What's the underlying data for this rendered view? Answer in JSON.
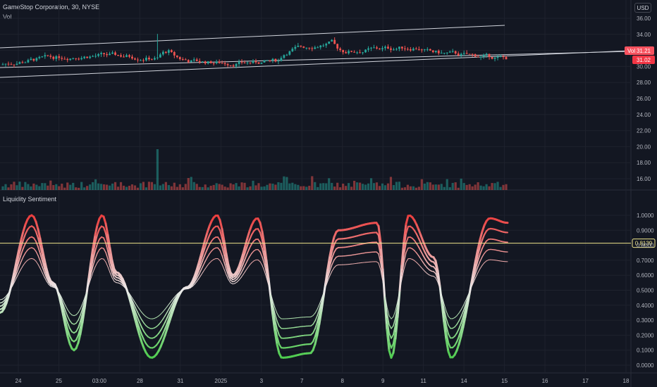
{
  "chart": {
    "symbol_title": "GameStop Corporation, 30, NYSE",
    "volume_label": "Vol",
    "currency_label": "USD",
    "price_axis": [
      "36.00",
      "34.00",
      "32.00",
      "30.00",
      "28.00",
      "26.00",
      "24.00",
      "22.00",
      "20.00",
      "18.00",
      "16.00"
    ],
    "price_tags": [
      {
        "text": "31.21",
        "sub": "Vol",
        "bg": "#f7525f"
      },
      {
        "text": "31.02",
        "sub": "",
        "bg": "#f23645"
      }
    ]
  },
  "indicator": {
    "title": "Liquidity Sentiment",
    "axis": [
      "1.0000",
      "0.9000",
      "0.8000",
      "0.7000",
      "0.6000",
      "0.5000",
      "0.4000",
      "0.3000",
      "0.2000",
      "0.1000",
      "0.0000"
    ],
    "level_value": "0.8139",
    "level_color": "#f0e68c"
  },
  "time_axis": [
    "24",
    "25",
    "03:00",
    "28",
    "31",
    "2025",
    "3",
    "7",
    "8",
    "9",
    "11",
    "14",
    "15",
    "16",
    "17",
    "18"
  ],
  "colors": {
    "bg": "#131722",
    "up": "#26a69a",
    "down": "#ef5350",
    "grid": "#1e222d"
  }
}
